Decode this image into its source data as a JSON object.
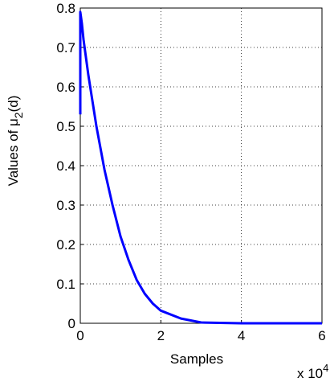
{
  "chart_data": {
    "type": "line",
    "ylabel": {
      "text": "Values of μ",
      "subscript": "2",
      "suffix": "(d)"
    },
    "xlabel": "Samples",
    "x_multiplier": {
      "text": "x 10",
      "exponent": "4"
    },
    "x": [
      0,
      0,
      0.04,
      0.08,
      0.2,
      0.4,
      0.6,
      0.8,
      1.0,
      1.2,
      1.4,
      1.6,
      1.8,
      2.0,
      2.5,
      3.0,
      4,
      5,
      6
    ],
    "series": [
      {
        "color": "#0000ff",
        "values": [
          0.53,
          0.79,
          0.76,
          0.72,
          0.63,
          0.5,
          0.39,
          0.3,
          0.22,
          0.16,
          0.11,
          0.075,
          0.05,
          0.032,
          0.012,
          0.002,
          0,
          0,
          0
        ]
      }
    ],
    "xlim": [
      0,
      6
    ],
    "xticks": [
      0,
      2,
      4,
      6
    ],
    "ylim": [
      0,
      0.8
    ],
    "yticks": [
      0,
      0.1,
      0.2,
      0.3,
      0.4,
      0.5,
      0.6,
      0.7,
      0.8
    ],
    "grid": true
  }
}
